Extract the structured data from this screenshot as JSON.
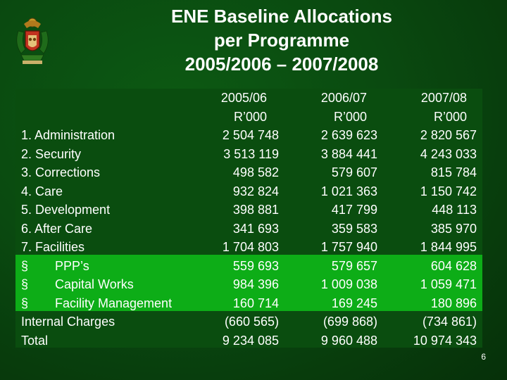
{
  "title": {
    "line1": "ENE Baseline Allocations",
    "line2": "per Programme",
    "line3": "2005/2006 – 2007/2008"
  },
  "colors": {
    "background": "#0a4a10",
    "table_band_dark": "#0a4d0f",
    "table_band_bright": "#0dad17",
    "text": "#ffffff"
  },
  "logo": "coat-of-arms",
  "table": {
    "headers": [
      {
        "year": "2005/06",
        "unit": "R’000"
      },
      {
        "year": "2006/07",
        "unit": "R’000"
      },
      {
        "year": "2007/08",
        "unit": "R’000"
      }
    ],
    "rows": [
      {
        "bullet": "",
        "label": "1. Administration",
        "v1": "2 504 748",
        "v2": "2 639 623",
        "v3": "2 820 567"
      },
      {
        "bullet": "",
        "label": "2. Security",
        "v1": "3 513 119",
        "v2": "3 884 441",
        "v3": "4 243 033"
      },
      {
        "bullet": "",
        "label": "3. Corrections",
        "v1": "498 582",
        "v2": "579 607",
        "v3": "815 784"
      },
      {
        "bullet": "",
        "label": "4. Care",
        "v1": "932 824",
        "v2": "1 021 363",
        "v3": "1 150 742"
      },
      {
        "bullet": "",
        "label": "5. Development",
        "v1": "398 881",
        "v2": "417 799",
        "v3": "448 113"
      },
      {
        "bullet": "",
        "label": "6. After Care",
        "v1": "341 693",
        "v2": "359 583",
        "v3": "385 970"
      },
      {
        "bullet": "",
        "label": "7. Facilities",
        "v1": "1 704 803",
        "v2": "1 757 940",
        "v3": "1 844 995"
      },
      {
        "bullet": "§",
        "label": "PPP’s",
        "v1": "559 693",
        "v2": "579 657",
        "v3": "604 628"
      },
      {
        "bullet": "§",
        "label": "Capital Works",
        "v1": "984 396",
        "v2": "1 009 038",
        "v3": "1 059 471"
      },
      {
        "bullet": "§",
        "label": "Facility Management",
        "v1": "160 714",
        "v2": "169 245",
        "v3": "180 896"
      },
      {
        "bullet": "",
        "label": "Internal Charges",
        "v1": "(660 565)",
        "v2": "(699 868)",
        "v3": "(734 861)"
      },
      {
        "bullet": "",
        "label": "Total",
        "v1": "9 234 085",
        "v2": "9 960 488",
        "v3": "10 974 343"
      }
    ]
  },
  "page_number": "6"
}
